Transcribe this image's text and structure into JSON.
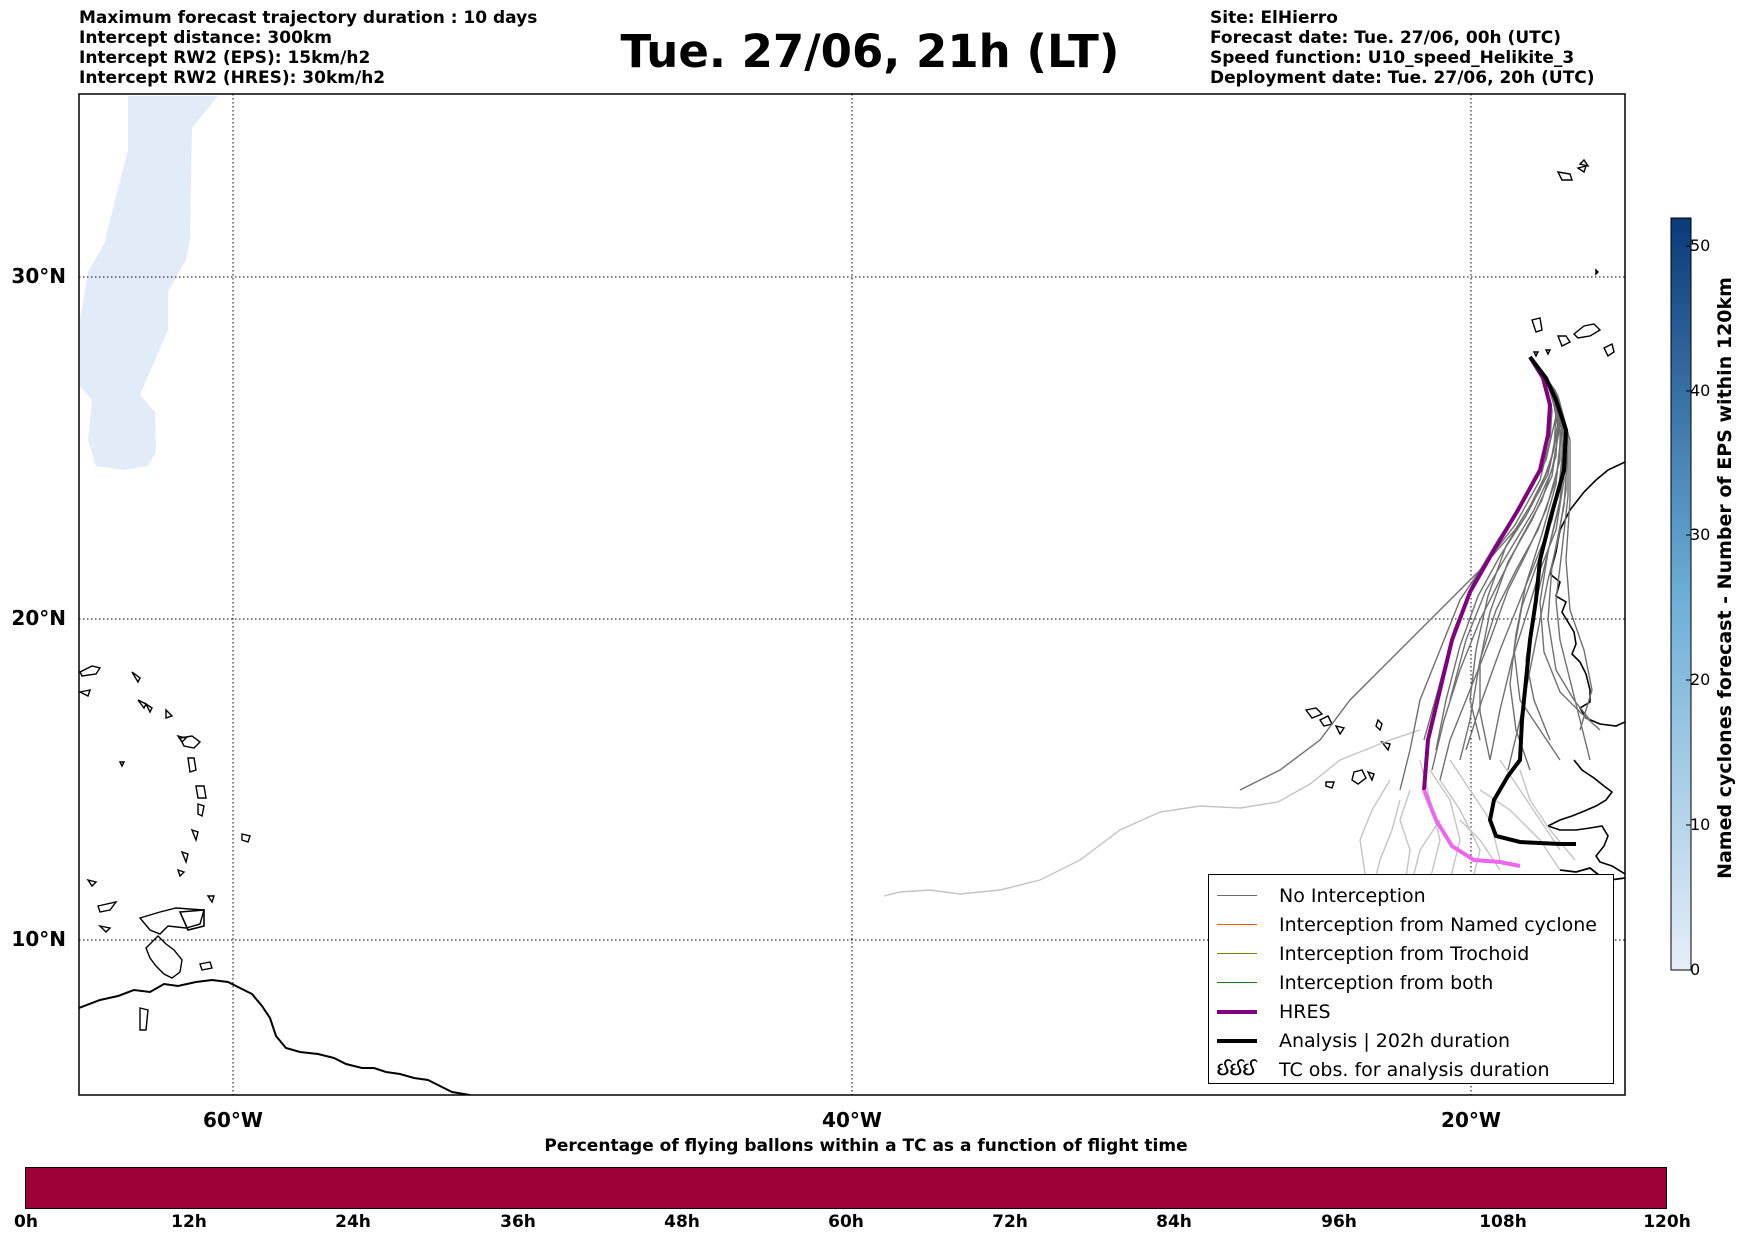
{
  "header": {
    "left_lines": [
      "Maximum forecast trajectory duration : 10 days",
      "Intercept distance: 300km",
      "Intercept RW2 (EPS):  15km/h2",
      "Intercept RW2 (HRES): 30km/h2"
    ],
    "title": "Tue. 27/06, 21h (LT)",
    "right_lines": [
      "Site: ElHierro",
      "Forecast date: Tue. 27/06, 00h (UTC)",
      "Speed function: U10_speed_Helikite_3",
      "Deployment date: Tue. 27/06, 20h (UTC)"
    ]
  },
  "map": {
    "lat_ticks": [
      "30°N",
      "20°N",
      "10°N"
    ],
    "lon_ticks": [
      "60°W",
      "40°W",
      "20°W"
    ],
    "grid": "dotted"
  },
  "legend": {
    "items": [
      {
        "label": "No Interception",
        "color": "#6e6e6e",
        "style": "thin"
      },
      {
        "label": "Interception from Named cyclone",
        "color": "#ff5a00",
        "style": "thin"
      },
      {
        "label": "Interception from Trochoid",
        "color": "#808000",
        "style": "thin"
      },
      {
        "label": "Interception from both",
        "color": "#1a7a1a",
        "style": "thin"
      },
      {
        "label": "HRES",
        "color": "#800080",
        "style": "thick"
      },
      {
        "label": "Analysis | 202h duration",
        "color": "#000000",
        "style": "thick"
      },
      {
        "label": "TC obs. for analysis duration",
        "symbol": "ઈઈઈ"
      }
    ]
  },
  "colorbar": {
    "label": "Named cyclones forecast - Number of EPS within 120km",
    "ticks": [
      "0",
      "10",
      "20",
      "30",
      "40",
      "50"
    ],
    "colors": [
      "#e6eef8",
      "#0a3a78"
    ]
  },
  "bottom": {
    "title": "Percentage of flying ballons within a TC as a function of flight time",
    "ticks": [
      "0h",
      "12h",
      "24h",
      "36h",
      "48h",
      "60h",
      "72h",
      "84h",
      "96h",
      "108h",
      "120h"
    ],
    "color": "#9e0038"
  }
}
